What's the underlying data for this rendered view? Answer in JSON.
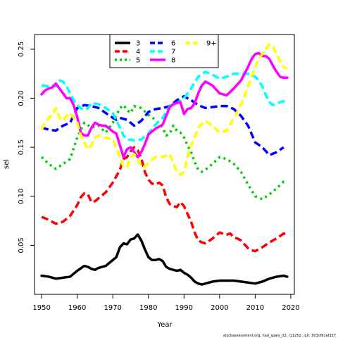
{
  "chart_data": {
    "type": "line",
    "title": "",
    "xlabel": "Year",
    "ylabel": "sel",
    "xlim": [
      1948,
      2021
    ],
    "ylim": [
      0.0,
      0.265
    ],
    "x_ticks": [
      1950,
      1960,
      1970,
      1980,
      1990,
      2000,
      2010,
      2020
    ],
    "y_ticks": [
      0.05,
      0.1,
      0.15,
      0.2,
      0.25
    ],
    "y_tick_labels": [
      "0.05",
      "0.10",
      "0.15",
      "0.20",
      "0.25"
    ],
    "grid": false,
    "legend_position": "top-center",
    "footer": "stockassessment.org, had_spaly_02, r11252 , git: 503cf91af157",
    "series": [
      {
        "name": "3",
        "color": "#000000",
        "dash": "solid",
        "x": [
          1950,
          1952,
          1954,
          1956,
          1958,
          1960,
          1962,
          1963,
          1964,
          1965,
          1966,
          1968,
          1970,
          1971,
          1972,
          1973,
          1974,
          1975,
          1976,
          1977,
          1978,
          1979,
          1980,
          1981,
          1982,
          1983,
          1984,
          1985,
          1986,
          1987,
          1988,
          1989,
          1990,
          1991,
          1992,
          1993,
          1994,
          1995,
          1996,
          1998,
          2000,
          2002,
          2004,
          2006,
          2008,
          2010,
          2012,
          2014,
          2016,
          2018,
          2019
        ],
        "y": [
          0.019,
          0.018,
          0.016,
          0.017,
          0.018,
          0.024,
          0.029,
          0.028,
          0.026,
          0.025,
          0.027,
          0.029,
          0.035,
          0.038,
          0.048,
          0.052,
          0.051,
          0.056,
          0.057,
          0.061,
          0.055,
          0.046,
          0.038,
          0.035,
          0.035,
          0.036,
          0.034,
          0.028,
          0.026,
          0.025,
          0.024,
          0.025,
          0.022,
          0.02,
          0.017,
          0.013,
          0.011,
          0.01,
          0.011,
          0.013,
          0.014,
          0.014,
          0.014,
          0.013,
          0.012,
          0.011,
          0.013,
          0.016,
          0.018,
          0.019,
          0.018
        ]
      },
      {
        "name": "4",
        "color": "#ff0000",
        "dash": "dash",
        "x": [
          1950,
          1952,
          1954,
          1956,
          1958,
          1960,
          1961,
          1962,
          1963,
          1964,
          1965,
          1966,
          1968,
          1970,
          1972,
          1973,
          1974,
          1975,
          1976,
          1977,
          1978,
          1979,
          1980,
          1981,
          1982,
          1983,
          1984,
          1985,
          1986,
          1987,
          1988,
          1989,
          1990,
          1991,
          1992,
          1993,
          1994,
          1995,
          1996,
          1998,
          2000,
          2002,
          2003,
          2004,
          2005,
          2006,
          2007,
          2008,
          2009,
          2010,
          2012,
          2014,
          2016,
          2018,
          2019
        ],
        "y": [
          0.079,
          0.076,
          0.072,
          0.074,
          0.08,
          0.091,
          0.099,
          0.103,
          0.102,
          0.094,
          0.095,
          0.098,
          0.104,
          0.114,
          0.127,
          0.138,
          0.14,
          0.146,
          0.15,
          0.147,
          0.139,
          0.125,
          0.117,
          0.113,
          0.112,
          0.114,
          0.111,
          0.099,
          0.092,
          0.09,
          0.089,
          0.094,
          0.09,
          0.082,
          0.074,
          0.063,
          0.055,
          0.053,
          0.052,
          0.057,
          0.063,
          0.061,
          0.062,
          0.058,
          0.057,
          0.055,
          0.051,
          0.047,
          0.045,
          0.044,
          0.048,
          0.053,
          0.057,
          0.062,
          0.061
        ]
      },
      {
        "name": "5",
        "color": "#00cd00",
        "dash": "dot",
        "x": [
          1950,
          1952,
          1954,
          1956,
          1958,
          1960,
          1962,
          1964,
          1966,
          1968,
          1970,
          1972,
          1973,
          1974,
          1975,
          1976,
          1978,
          1980,
          1982,
          1984,
          1985,
          1986,
          1987,
          1988,
          1989,
          1990,
          1991,
          1992,
          1993,
          1994,
          1995,
          1996,
          1998,
          2000,
          2002,
          2004,
          2006,
          2008,
          2010,
          2012,
          2014,
          2016,
          2018,
          2019
        ],
        "y": [
          0.14,
          0.133,
          0.128,
          0.133,
          0.138,
          0.16,
          0.175,
          0.17,
          0.172,
          0.165,
          0.175,
          0.19,
          0.193,
          0.188,
          0.185,
          0.192,
          0.19,
          0.183,
          0.178,
          0.17,
          0.162,
          0.164,
          0.172,
          0.167,
          0.165,
          0.16,
          0.152,
          0.145,
          0.135,
          0.127,
          0.125,
          0.127,
          0.133,
          0.14,
          0.138,
          0.133,
          0.125,
          0.112,
          0.1,
          0.097,
          0.102,
          0.108,
          0.115,
          0.115
        ]
      },
      {
        "name": "6",
        "color": "#0000ff",
        "dash": "dash",
        "x": [
          1950,
          1952,
          1954,
          1956,
          1958,
          1960,
          1962,
          1964,
          1966,
          1968,
          1970,
          1971,
          1972,
          1974,
          1976,
          1978,
          1980,
          1982,
          1984,
          1986,
          1988,
          1990,
          1992,
          1994,
          1996,
          1998,
          2000,
          2002,
          2004,
          2006,
          2008,
          2010,
          2012,
          2014,
          2016,
          2018
        ],
        "y": [
          0.17,
          0.168,
          0.167,
          0.172,
          0.175,
          0.19,
          0.193,
          0.192,
          0.19,
          0.185,
          0.18,
          0.178,
          0.18,
          0.178,
          0.172,
          0.177,
          0.186,
          0.189,
          0.19,
          0.192,
          0.198,
          0.202,
          0.198,
          0.193,
          0.19,
          0.191,
          0.192,
          0.192,
          0.189,
          0.182,
          0.172,
          0.155,
          0.15,
          0.142,
          0.145,
          0.15
        ]
      },
      {
        "name": "7",
        "color": "#00ffff",
        "dash": "dash",
        "x": [
          1950,
          1952,
          1953,
          1954,
          1955,
          1956,
          1957,
          1958,
          1959,
          1960,
          1961,
          1962,
          1963,
          1964,
          1966,
          1968,
          1970,
          1972,
          1973,
          1974,
          1976,
          1978,
          1980,
          1982,
          1984,
          1986,
          1988,
          1990,
          1992,
          1994,
          1996,
          1998,
          2000,
          2002,
          2004,
          2006,
          2008,
          2010,
          2011,
          2012,
          2013,
          2014,
          2015,
          2016,
          2017,
          2018,
          2019
        ],
        "y": [
          0.213,
          0.212,
          0.213,
          0.212,
          0.218,
          0.217,
          0.212,
          0.205,
          0.198,
          0.193,
          0.19,
          0.188,
          0.19,
          0.195,
          0.194,
          0.19,
          0.185,
          0.17,
          0.162,
          0.158,
          0.157,
          0.158,
          0.164,
          0.173,
          0.18,
          0.192,
          0.195,
          0.2,
          0.21,
          0.222,
          0.227,
          0.224,
          0.22,
          0.222,
          0.225,
          0.225,
          0.225,
          0.222,
          0.218,
          0.212,
          0.203,
          0.196,
          0.193,
          0.194,
          0.196,
          0.197,
          0.197
        ]
      },
      {
        "name": "8",
        "color": "#ff00ff",
        "dash": "solid",
        "x": [
          1950,
          1951,
          1952,
          1953,
          1954,
          1955,
          1956,
          1957,
          1958,
          1959,
          1960,
          1961,
          1962,
          1963,
          1964,
          1965,
          1966,
          1967,
          1968,
          1970,
          1971,
          1972,
          1973,
          1974,
          1975,
          1976,
          1977,
          1978,
          1979,
          1980,
          1982,
          1984,
          1985,
          1986,
          1987,
          1988,
          1989,
          1990,
          1991,
          1992,
          1993,
          1994,
          1995,
          1996,
          1998,
          2000,
          2002,
          2004,
          2006,
          2008,
          2009,
          2010,
          2011,
          2012,
          2013,
          2014,
          2015,
          2016,
          2017,
          2018,
          2019
        ],
        "y": [
          0.204,
          0.208,
          0.21,
          0.211,
          0.215,
          0.21,
          0.205,
          0.2,
          0.2,
          0.193,
          0.181,
          0.165,
          0.162,
          0.162,
          0.17,
          0.175,
          0.173,
          0.172,
          0.172,
          0.166,
          0.164,
          0.152,
          0.14,
          0.148,
          0.15,
          0.145,
          0.14,
          0.145,
          0.153,
          0.163,
          0.169,
          0.173,
          0.182,
          0.191,
          0.194,
          0.195,
          0.196,
          0.184,
          0.189,
          0.19,
          0.195,
          0.205,
          0.213,
          0.217,
          0.213,
          0.205,
          0.203,
          0.21,
          0.218,
          0.232,
          0.24,
          0.245,
          0.246,
          0.243,
          0.243,
          0.24,
          0.233,
          0.227,
          0.222,
          0.221,
          0.221
        ]
      },
      {
        "name": "9+",
        "color": "#ffff00",
        "dash": "dash",
        "x": [
          1950,
          1951,
          1952,
          1953,
          1954,
          1955,
          1956,
          1957,
          1958,
          1959,
          1960,
          1961,
          1962,
          1963,
          1964,
          1965,
          1966,
          1967,
          1968,
          1970,
          1972,
          1973,
          1974,
          1975,
          1976,
          1977,
          1978,
          1979,
          1980,
          1982,
          1984,
          1986,
          1988,
          1989,
          1990,
          1991,
          1992,
          1993,
          1994,
          1996,
          1998,
          2000,
          2002,
          2004,
          2006,
          2008,
          2010,
          2011,
          2012,
          2013,
          2014,
          2015,
          2016,
          2017,
          2018,
          2019
        ],
        "y": [
          0.168,
          0.175,
          0.18,
          0.183,
          0.19,
          0.18,
          0.177,
          0.182,
          0.185,
          0.18,
          0.175,
          0.162,
          0.155,
          0.148,
          0.152,
          0.16,
          0.162,
          0.16,
          0.16,
          0.158,
          0.14,
          0.13,
          0.13,
          0.14,
          0.143,
          0.138,
          0.13,
          0.13,
          0.134,
          0.14,
          0.14,
          0.143,
          0.125,
          0.122,
          0.125,
          0.14,
          0.152,
          0.16,
          0.17,
          0.177,
          0.172,
          0.165,
          0.167,
          0.18,
          0.193,
          0.212,
          0.232,
          0.24,
          0.245,
          0.25,
          0.255,
          0.253,
          0.245,
          0.238,
          0.232,
          0.23
        ]
      }
    ]
  }
}
